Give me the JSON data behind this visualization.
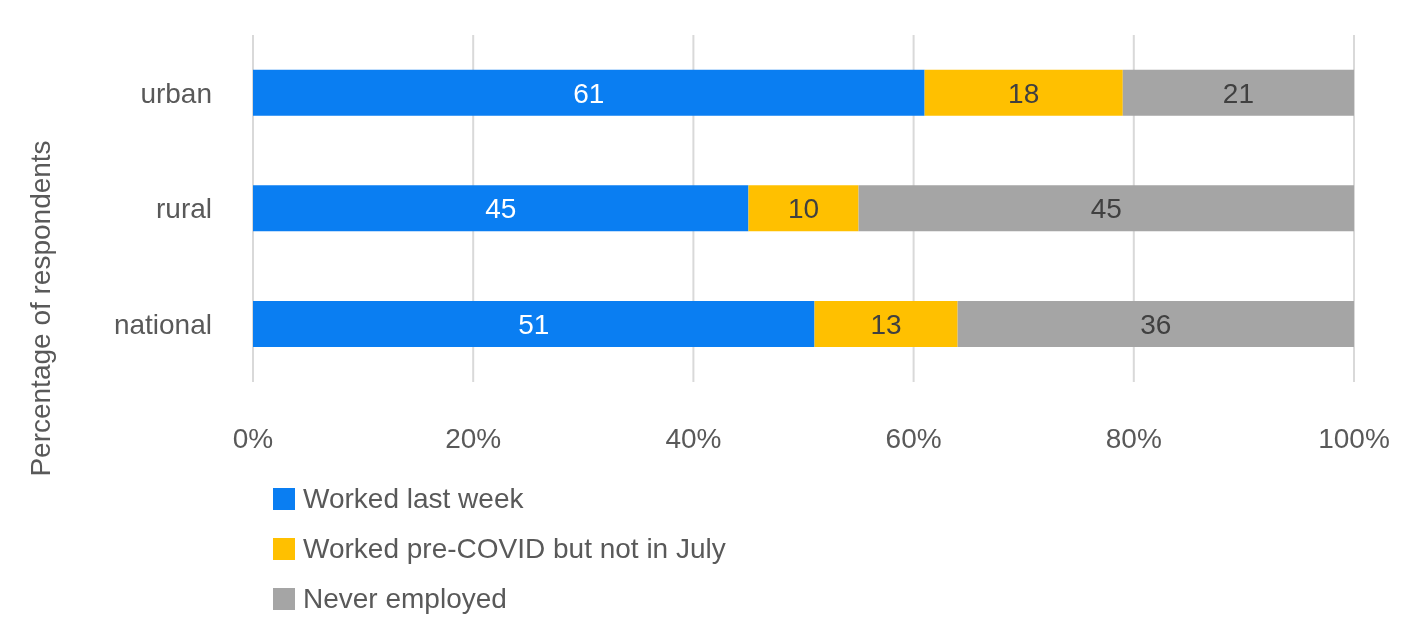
{
  "chart_data": {
    "type": "bar",
    "orientation": "horizontal",
    "stacked": true,
    "ylabel": "Percentage of respondents",
    "categories": [
      "urban",
      "rural",
      "national"
    ],
    "series": [
      {
        "name": "Worked last week",
        "color": "#0a7ef2",
        "values": [
          61,
          45,
          51
        ]
      },
      {
        "name": "Worked pre-COVID but not in July",
        "color": "#ffc000",
        "values": [
          18,
          10,
          13
        ]
      },
      {
        "name": "Never employed",
        "color": "#a5a5a5",
        "values": [
          21,
          45,
          36
        ]
      }
    ],
    "xlim": [
      0,
      100
    ],
    "xticks": [
      {
        "value": 0,
        "label": "0%"
      },
      {
        "value": 20,
        "label": "20%"
      },
      {
        "value": 40,
        "label": "40%"
      },
      {
        "value": 60,
        "label": "60%"
      },
      {
        "value": 80,
        "label": "80%"
      },
      {
        "value": 100,
        "label": "100%"
      }
    ],
    "data_labels": true,
    "grid": "x",
    "legend": "bottom"
  }
}
